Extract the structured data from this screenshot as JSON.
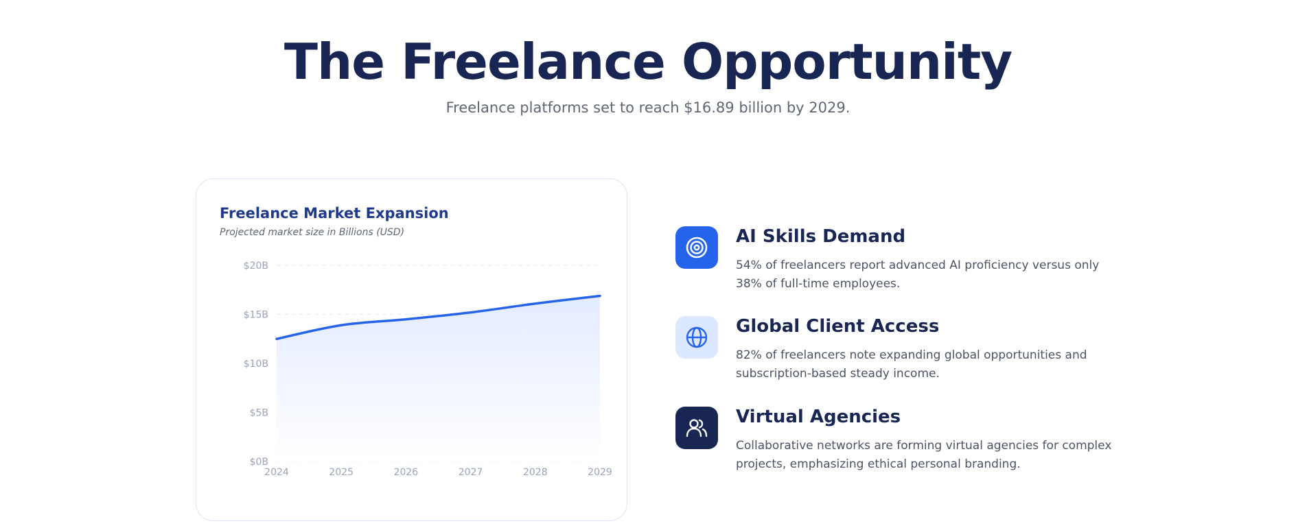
{
  "header": {
    "title": "The Freelance Opportunity",
    "subtitle": "Freelance platforms set to reach $16.89 billion by 2029."
  },
  "chart_card": {
    "title": "Freelance Market Expansion",
    "subtitle": "Projected market size in Billions (USD)"
  },
  "chart_data": {
    "type": "area",
    "title": "Freelance Market Expansion",
    "subtitle": "Projected market size in Billions (USD)",
    "x": [
      "2024",
      "2025",
      "2026",
      "2027",
      "2028",
      "2029"
    ],
    "series": [
      {
        "values": [
          12.5,
          13.9,
          14.5,
          15.2,
          16.1,
          16.89
        ]
      }
    ],
    "y_ticks": [
      "$0B",
      "$5B",
      "$10B",
      "$15B",
      "$20B"
    ],
    "ylim": [
      0,
      20
    ],
    "grid": true,
    "legend": "none",
    "line_color": "#2563eb",
    "fill_color": "#e8efff"
  },
  "features": [
    {
      "title": "AI Skills Demand",
      "text": "54% of freelancers report advanced AI proficiency versus only 38% of full-time employees.",
      "icon": "target-icon",
      "icon_bg": "#2563eb",
      "icon_color": "#ffffff"
    },
    {
      "title": "Global Client Access",
      "text": "82% of freelancers note expanding global opportunities and subscription-based steady income.",
      "icon": "globe-icon",
      "icon_bg": "#dbe8fd",
      "icon_color": "#2563eb"
    },
    {
      "title": "Virtual Agencies",
      "text": "Collaborative networks are forming virtual agencies for complex projects, emphasizing ethical personal branding.",
      "icon": "users-icon",
      "icon_bg": "#192653",
      "icon_color": "#ffffff"
    }
  ]
}
